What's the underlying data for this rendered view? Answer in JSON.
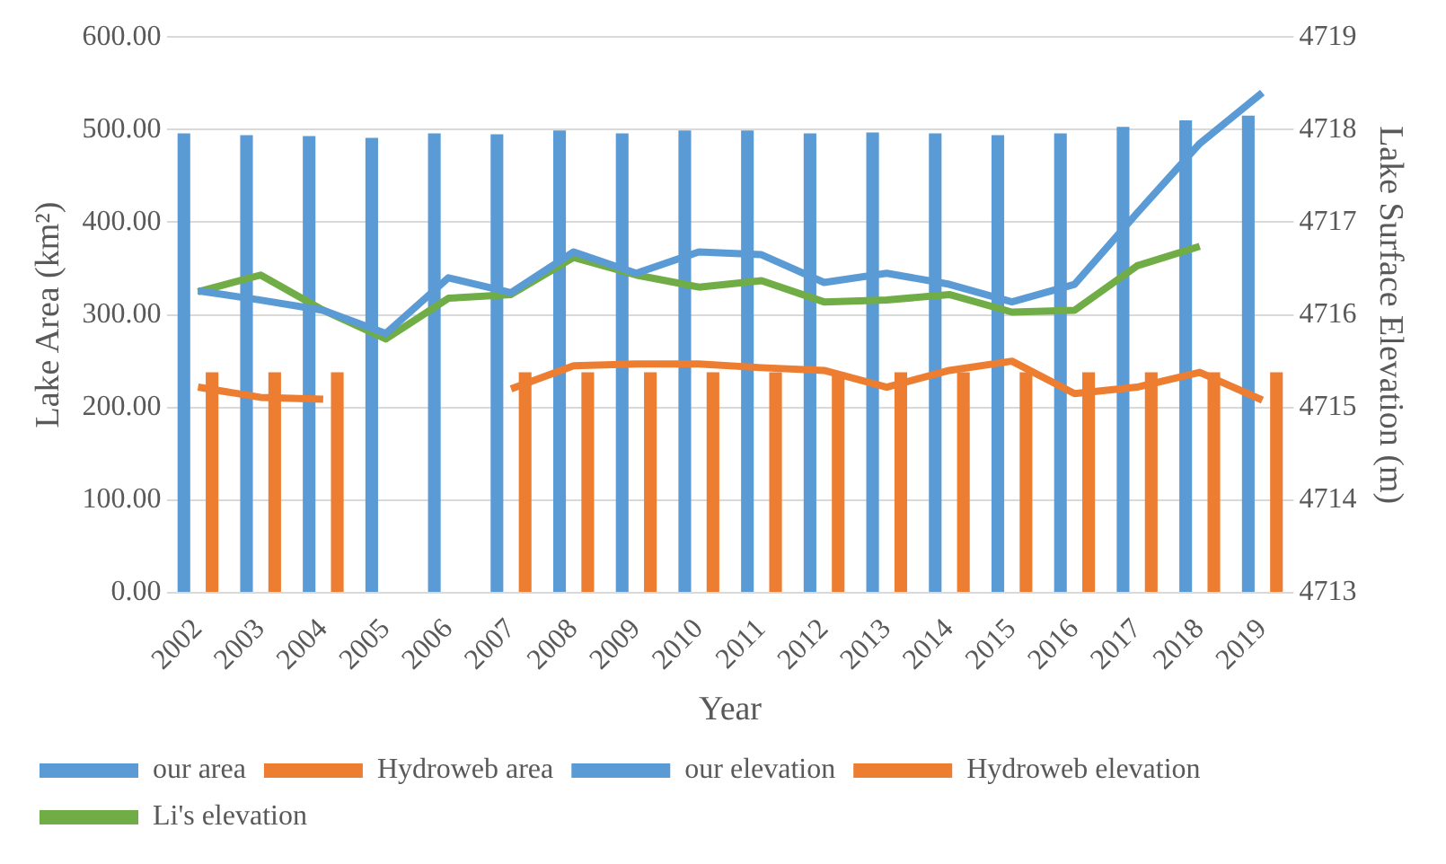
{
  "chart_data": {
    "type": "bar",
    "xlabel": "Year",
    "ylabel": "Lake Area (km²)",
    "y2label": "Lake Surface Elevation (m)",
    "categories": [
      "2002",
      "2003",
      "2004",
      "2005",
      "2006",
      "2007",
      "2008",
      "2009",
      "2010",
      "2011",
      "2012",
      "2013",
      "2014",
      "2015",
      "2016",
      "2017",
      "2018",
      "2019"
    ],
    "series": [
      {
        "name": "our area",
        "color": "#5b9bd5",
        "values": [
          496,
          494,
          493,
          491,
          496,
          495,
          499,
          496,
          499,
          499,
          496,
          497,
          496,
          494,
          496,
          503,
          510,
          515
        ]
      },
      {
        "name": "Hydroweb area",
        "color": "#ed7d31",
        "values": [
          238,
          238,
          238,
          null,
          null,
          238,
          238,
          238,
          238,
          238,
          238,
          238,
          238,
          238,
          238,
          238,
          238,
          238
        ]
      },
      {
        "name": "our elevation",
        "type": "line",
        "axis": "y2",
        "color": "#5b9bd5",
        "values": [
          4716.26,
          4716.16,
          4716.05,
          4715.8,
          4716.4,
          4716.24,
          4716.68,
          4716.45,
          4716.68,
          4716.65,
          4716.35,
          4716.45,
          4716.33,
          4716.14,
          4716.33,
          4717.1,
          4717.85,
          4718.4
        ]
      },
      {
        "name": "Hydroweb elevation",
        "type": "line",
        "axis": "y2",
        "color": "#ed7d31",
        "values": [
          4715.22,
          4715.11,
          4715.09,
          null,
          null,
          4715.2,
          4715.45,
          4715.47,
          4715.47,
          4715.43,
          4715.4,
          4715.22,
          4715.4,
          4715.5,
          4715.15,
          4715.22,
          4715.38,
          4715.08
        ]
      },
      {
        "name": "Li's elevation",
        "type": "line",
        "axis": "y2",
        "color": "#70ad47",
        "values": [
          4716.25,
          4716.43,
          4716.05,
          4715.74,
          4716.18,
          4716.22,
          4716.62,
          4716.43,
          4716.3,
          4716.37,
          4716.14,
          4716.16,
          4716.22,
          4716.03,
          4716.05,
          4716.53,
          4716.74,
          null
        ]
      }
    ],
    "ylim": [
      0,
      600
    ],
    "yticks": [
      {
        "value": 0,
        "label": "0.00"
      },
      {
        "value": 100,
        "label": "100.00"
      },
      {
        "value": 200,
        "label": "200.00"
      },
      {
        "value": 300,
        "label": "300.00"
      },
      {
        "value": 400,
        "label": "400.00"
      },
      {
        "value": 500,
        "label": "500.00"
      },
      {
        "value": 600,
        "label": "600.00"
      }
    ],
    "y2lim": [
      4713,
      4719
    ],
    "y2ticks": [
      4713,
      4714,
      4715,
      4716,
      4717,
      4718,
      4719
    ],
    "grid": "y",
    "legend": "bottom",
    "marker": "none",
    "line_style": "solid"
  }
}
